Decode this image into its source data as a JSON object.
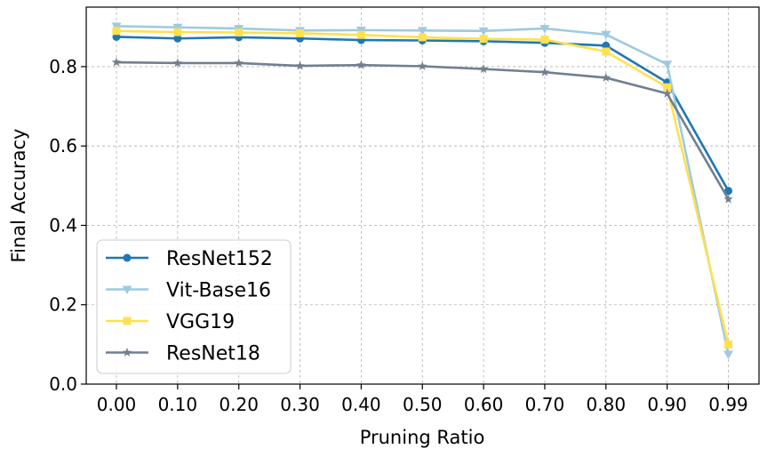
{
  "chart_data": {
    "type": "line",
    "title": "",
    "xlabel": "Pruning Ratio",
    "ylabel": "Final Accuracy",
    "categories": [
      "0.00",
      "0.10",
      "0.20",
      "0.30",
      "0.40",
      "0.50",
      "0.60",
      "0.70",
      "0.80",
      "0.90",
      "0.99"
    ],
    "ylim": [
      0.0,
      0.95
    ],
    "yticks": [
      "0.0",
      "0.2",
      "0.4",
      "0.6",
      "0.8"
    ],
    "ytick_values": [
      0.0,
      0.2,
      0.4,
      0.6,
      0.8
    ],
    "grid": true,
    "legend_position": "lower-left",
    "series": [
      {
        "name": "ResNet152",
        "color": "#1f77b4",
        "marker": "circle",
        "values": [
          0.875,
          0.871,
          0.874,
          0.871,
          0.867,
          0.866,
          0.864,
          0.86,
          0.853,
          0.76,
          0.487
        ]
      },
      {
        "name": "Vit-Base16",
        "color": "#9ecae1",
        "marker": "triangle-down",
        "values": [
          0.902,
          0.899,
          0.896,
          0.891,
          0.892,
          0.891,
          0.89,
          0.896,
          0.881,
          0.806,
          0.075
        ]
      },
      {
        "name": "VGG19",
        "color": "#ffe04f",
        "marker": "square",
        "values": [
          0.89,
          0.887,
          0.886,
          0.884,
          0.88,
          0.874,
          0.87,
          0.868,
          0.838,
          0.748,
          0.1
        ]
      },
      {
        "name": "ResNet18",
        "color": "#708090",
        "marker": "star",
        "values": [
          0.811,
          0.809,
          0.809,
          0.802,
          0.804,
          0.801,
          0.794,
          0.786,
          0.772,
          0.732,
          0.466
        ]
      }
    ]
  }
}
